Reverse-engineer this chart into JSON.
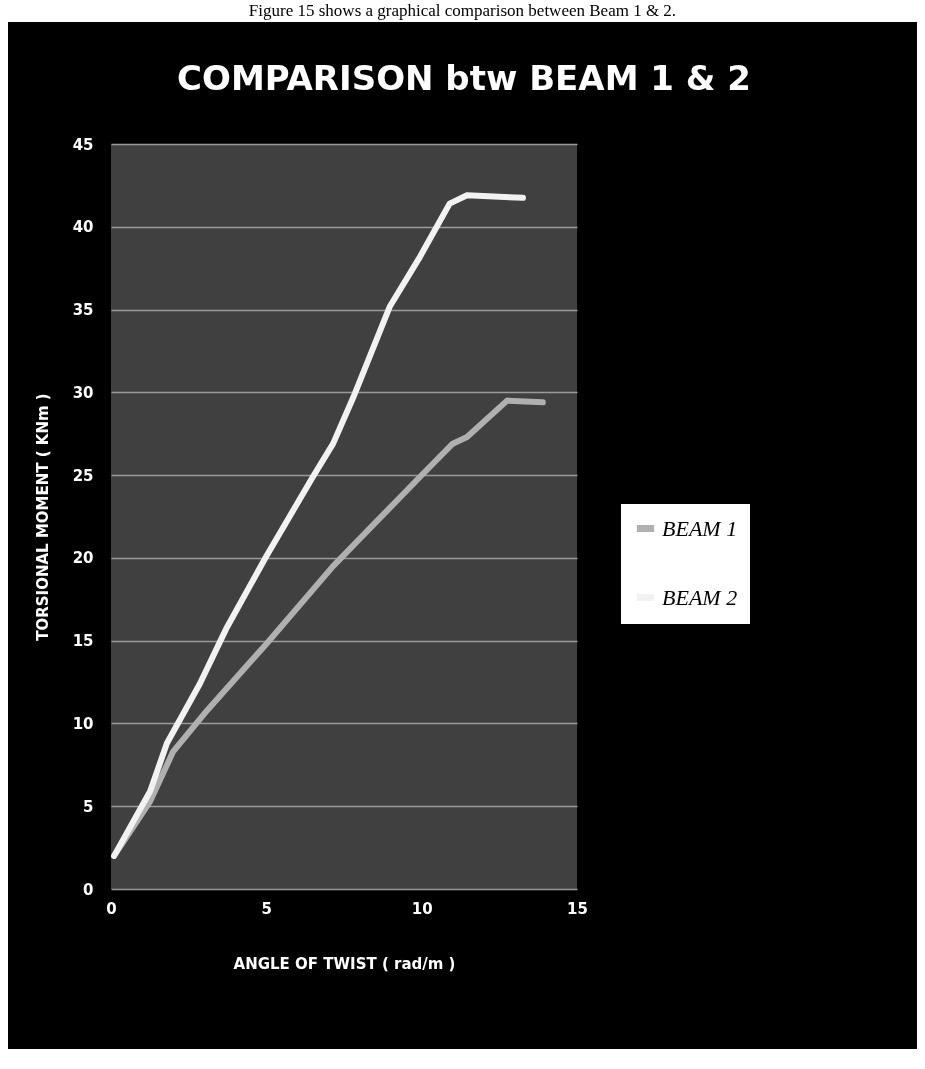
{
  "chart_data": {
    "type": "line",
    "title": "COMPARISON btw BEAM 1 & 2",
    "xlabel": "ANGLE OF TWIST ( rad/m )",
    "ylabel": "TORSIONAL MOMENT ( KNm )",
    "annotations": [
      "Figure 15 shows a graphical comparison between Beam 1 & 2."
    ],
    "series": [
      {
        "name": "BEAM 1",
        "color": "#b0b0b0",
        "x": [
          0.1,
          1.26,
          2.0,
          3.1,
          5.0,
          7.15,
          8.55,
          9.95,
          11.0,
          11.46,
          12.75,
          13.9
        ],
        "values": [
          2,
          5.3,
          8.3,
          10.8,
          14.8,
          19.5,
          22.2,
          24.9,
          26.9,
          27.3,
          29.5,
          29.4
        ]
      },
      {
        "name": "BEAM 2",
        "color": "#f2f2f2",
        "x": [
          0.1,
          1.26,
          1.8,
          2.86,
          3.73,
          5.0,
          6.5,
          7.15,
          7.8,
          8.98,
          9.95,
          10.9,
          11.46,
          13.26
        ],
        "values": [
          2,
          5.9,
          8.8,
          12.4,
          15.8,
          20.1,
          24.9,
          26.9,
          29.7,
          35.2,
          38.2,
          41.4,
          41.9,
          41.75
        ]
      }
    ],
    "xlim": [
      0,
      15
    ],
    "xticks": [
      0,
      5,
      10,
      15
    ],
    "ylim": [
      0,
      45
    ],
    "yticks": [
      0,
      5,
      10,
      15,
      20,
      25,
      30,
      35,
      40,
      45
    ],
    "grid": "y",
    "legend": "right",
    "marker": "none"
  }
}
